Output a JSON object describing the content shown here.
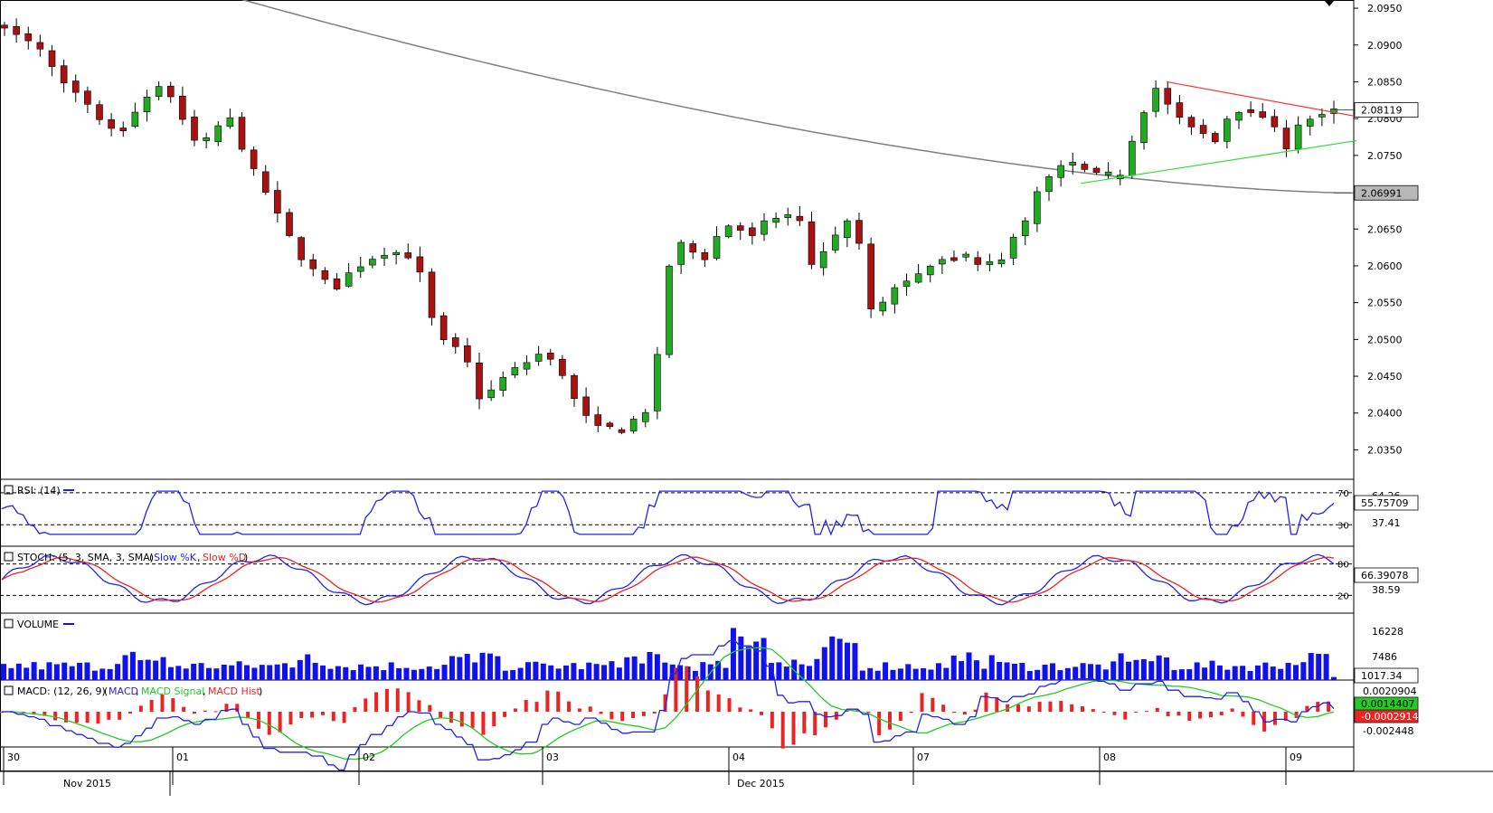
{
  "chart_data": [
    {
      "type": "candlestick",
      "panel": "price",
      "ylim": [
        2.031,
        2.0955
      ],
      "yticks": [
        "2.0950",
        "2.0900",
        "2.0850",
        "2.0800",
        "2.0750",
        "2.0700",
        "2.0650",
        "2.0600",
        "2.0550",
        "2.0500",
        "2.0450",
        "2.0400",
        "2.0350"
      ],
      "last_price_label": "2.08119",
      "last_price": 2.08119,
      "ma_label": "2.06991",
      "ma_value": 2.06991,
      "colors": {
        "up": "#22aa22",
        "down": "#aa1111",
        "ma": "#808080",
        "resistance": "#ff3333",
        "support": "#33dd33"
      },
      "anchors": [
        2.0925,
        2.0915,
        2.0905,
        2.0895,
        2.087,
        2.085,
        2.0835,
        2.082,
        2.08,
        2.0785,
        2.079,
        2.081,
        2.083,
        2.0845,
        2.083,
        2.08,
        2.077,
        2.077,
        2.079,
        2.08,
        2.076,
        2.073,
        2.07,
        2.067,
        2.064,
        2.061,
        2.0595,
        2.058,
        2.057,
        2.059,
        2.06,
        2.061,
        2.0615,
        2.062,
        2.061,
        2.059,
        2.053,
        2.05,
        2.049,
        2.047,
        2.042,
        2.043,
        2.045,
        2.046,
        2.047,
        2.048,
        2.0475,
        2.045,
        2.042,
        2.0395,
        2.0385,
        2.038,
        2.0375,
        2.039,
        2.04,
        2.048,
        2.06,
        2.063,
        2.062,
        2.061,
        2.064,
        2.0655,
        2.065,
        2.064,
        2.066,
        2.0665,
        2.0665,
        2.066,
        2.06,
        2.062,
        2.064,
        2.066,
        2.063,
        2.054,
        2.055,
        2.057,
        2.058,
        2.059,
        2.06,
        2.061,
        2.061,
        2.061,
        2.06,
        2.0605,
        2.061,
        2.064,
        2.066,
        2.07,
        2.072,
        2.0735,
        2.074,
        2.073,
        2.0725,
        2.072,
        2.0725,
        2.077,
        2.081,
        2.084,
        2.082,
        2.08,
        2.079,
        2.078,
        2.077,
        2.08,
        2.081,
        2.081,
        2.08,
        2.079,
        2.076,
        2.079,
        2.08,
        2.0805,
        2.0812
      ],
      "ma_start": 2.0965,
      "ma_end": 2.0699,
      "resistance_line": {
        "from": [
          1290,
          2.085
        ],
        "to": [
          1500,
          2.0803
        ]
      },
      "support_line": {
        "from": [
          1195,
          2.0712
        ],
        "to": [
          1500,
          2.077
        ]
      }
    },
    {
      "type": "line",
      "panel": "rsi",
      "legend_label": "RSI: (14)",
      "levels": [
        "70",
        "30"
      ],
      "value_label": "55.75709",
      "max_label": "64.26",
      "min_label": "37.41",
      "value": 55.75709,
      "color": "#2222ee"
    },
    {
      "type": "line",
      "panel": "stochastic",
      "legend_label": "STOCH: (5, 3, SMA, 3, SMA)",
      "series_names": [
        "Slow %K",
        "Slow %D"
      ],
      "colors": [
        "#2222ee",
        "#ee2222"
      ],
      "levels": [
        "80",
        "20"
      ],
      "value_label": "66.39078",
      "min_label": "38.59",
      "value": 66.39078
    },
    {
      "type": "bar",
      "panel": "volume",
      "legend_label": "VOLUME",
      "ticks": [
        "16228",
        "7486"
      ],
      "value_label": "1017.34",
      "value": 1017.34,
      "color": "#1111ee"
    },
    {
      "type": "line",
      "panel": "macd",
      "legend_label": "MACD: (12, 26, 9)",
      "series_names": [
        "MACD",
        "MACD Signal",
        "MACD Hist"
      ],
      "colors": [
        "#2222ee",
        "#22cc22",
        "#ee2222"
      ],
      "value_labels": [
        "0.0020904",
        "0.0014407",
        "-0.0002914",
        "-0.002448"
      ]
    }
  ],
  "x_axis": {
    "day_labels": [
      "30",
      "01",
      "02",
      "03",
      "04",
      "07",
      "08",
      "09"
    ],
    "month_labels": [
      "Nov 2015",
      "Dec 2015"
    ]
  }
}
